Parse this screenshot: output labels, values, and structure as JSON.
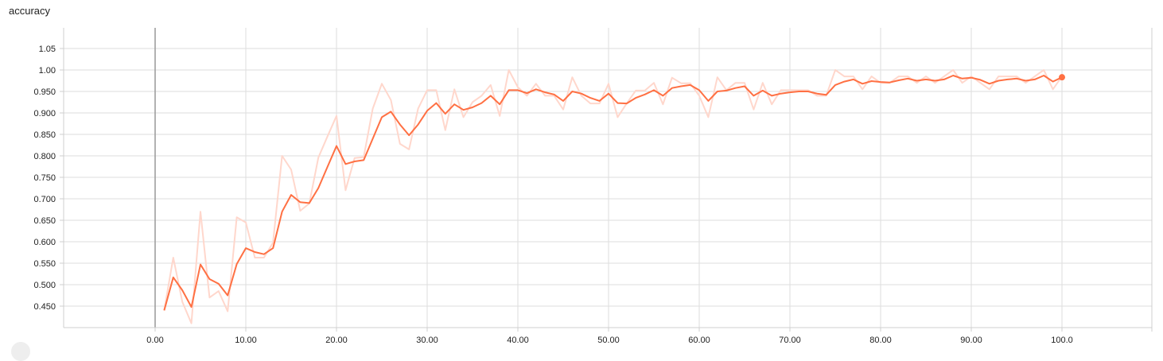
{
  "card": {
    "title": "accuracy"
  },
  "colors": {
    "line": "#ff7043",
    "raw_line": "#ffd7cc",
    "grid": "#dddddd",
    "axis": "#cfcfcf",
    "zero_line": "#999999"
  },
  "chart_data": {
    "type": "line",
    "title": "accuracy",
    "xlabel": "",
    "ylabel": "",
    "xlim": [
      -10,
      102
    ],
    "ylim": [
      0.4,
      1.1
    ],
    "x_ticks": [
      "0.00",
      "10.00",
      "20.00",
      "30.00",
      "40.00",
      "50.00",
      "60.00",
      "70.00",
      "80.00",
      "90.00",
      "100.0"
    ],
    "y_ticks": [
      "0.450",
      "0.500",
      "0.550",
      "0.600",
      "0.650",
      "0.700",
      "0.750",
      "0.800",
      "0.850",
      "0.900",
      "0.950",
      "1.00",
      "1.05"
    ],
    "grid": true,
    "legend": "none",
    "series": [
      {
        "role": "raw",
        "x": [
          1,
          2,
          3,
          4,
          5,
          6,
          7,
          8,
          9,
          10,
          11,
          12,
          13,
          14,
          15,
          16,
          17,
          18,
          19,
          20,
          21,
          22,
          23,
          24,
          25,
          26,
          27,
          28,
          29,
          30,
          31,
          32,
          33,
          34,
          35,
          36,
          37,
          38,
          39,
          40,
          41,
          42,
          43,
          44,
          45,
          46,
          47,
          48,
          49,
          50,
          51,
          52,
          53,
          54,
          55,
          56,
          57,
          58,
          59,
          60,
          61,
          62,
          63,
          64,
          65,
          66,
          67,
          68,
          69,
          70,
          71,
          72,
          73,
          74,
          75,
          76,
          77,
          78,
          79,
          80,
          81,
          82,
          83,
          84,
          85,
          86,
          87,
          88,
          89,
          90,
          91,
          92,
          93,
          94,
          95,
          96,
          97,
          98,
          99,
          100
        ],
        "y": [
          0.44,
          0.563,
          0.46,
          0.41,
          0.67,
          0.47,
          0.485,
          0.438,
          0.657,
          0.645,
          0.563,
          0.563,
          0.598,
          0.8,
          0.768,
          0.672,
          0.689,
          0.796,
          0.845,
          0.893,
          0.72,
          0.795,
          0.797,
          0.91,
          0.968,
          0.93,
          0.828,
          0.815,
          0.91,
          0.953,
          0.953,
          0.86,
          0.955,
          0.89,
          0.925,
          0.94,
          0.965,
          0.893,
          1.0,
          0.96,
          0.94,
          0.968,
          0.94,
          0.94,
          0.908,
          0.983,
          0.94,
          0.922,
          0.922,
          0.968,
          0.89,
          0.922,
          0.952,
          0.952,
          0.97,
          0.92,
          0.982,
          0.969,
          0.969,
          0.94,
          0.89,
          0.983,
          0.953,
          0.97,
          0.97,
          0.908,
          0.97,
          0.92,
          0.953,
          0.953,
          0.953,
          0.953,
          0.94,
          0.94,
          1.0,
          0.985,
          0.985,
          0.955,
          0.985,
          0.97,
          0.97,
          0.985,
          0.985,
          0.97,
          0.985,
          0.97,
          0.985,
          1.0,
          0.97,
          0.985,
          0.97,
          0.955,
          0.985,
          0.985,
          0.985,
          0.97,
          0.985,
          1.0,
          0.955,
          0.985
        ]
      },
      {
        "role": "smoothed",
        "x": [
          1,
          2,
          3,
          4,
          5,
          6,
          7,
          8,
          9,
          10,
          11,
          12,
          13,
          14,
          15,
          16,
          17,
          18,
          19,
          20,
          21,
          22,
          23,
          24,
          25,
          26,
          27,
          28,
          29,
          30,
          31,
          32,
          33,
          34,
          35,
          36,
          37,
          38,
          39,
          40,
          41,
          42,
          43,
          44,
          45,
          46,
          47,
          48,
          49,
          50,
          51,
          52,
          53,
          54,
          55,
          56,
          57,
          58,
          59,
          60,
          61,
          62,
          63,
          64,
          65,
          66,
          67,
          68,
          69,
          70,
          71,
          72,
          73,
          74,
          75,
          76,
          77,
          78,
          79,
          80,
          81,
          82,
          83,
          84,
          85,
          86,
          87,
          88,
          89,
          90,
          91,
          92,
          93,
          94,
          95,
          96,
          97,
          98,
          99,
          100
        ],
        "y": [
          0.44,
          0.517,
          0.487,
          0.448,
          0.547,
          0.513,
          0.502,
          0.475,
          0.548,
          0.585,
          0.576,
          0.571,
          0.585,
          0.67,
          0.709,
          0.692,
          0.69,
          0.725,
          0.774,
          0.823,
          0.781,
          0.787,
          0.79,
          0.84,
          0.89,
          0.903,
          0.873,
          0.848,
          0.873,
          0.905,
          0.923,
          0.898,
          0.92,
          0.907,
          0.913,
          0.923,
          0.94,
          0.92,
          0.953,
          0.953,
          0.946,
          0.955,
          0.948,
          0.943,
          0.928,
          0.95,
          0.945,
          0.935,
          0.928,
          0.945,
          0.923,
          0.922,
          0.935,
          0.943,
          0.953,
          0.94,
          0.958,
          0.962,
          0.965,
          0.953,
          0.928,
          0.95,
          0.952,
          0.958,
          0.962,
          0.94,
          0.952,
          0.94,
          0.945,
          0.948,
          0.95,
          0.95,
          0.945,
          0.942,
          0.965,
          0.973,
          0.978,
          0.968,
          0.974,
          0.972,
          0.971,
          0.976,
          0.98,
          0.975,
          0.978,
          0.975,
          0.978,
          0.987,
          0.98,
          0.982,
          0.977,
          0.968,
          0.975,
          0.978,
          0.98,
          0.975,
          0.978,
          0.987,
          0.973,
          0.983
        ]
      }
    ]
  }
}
